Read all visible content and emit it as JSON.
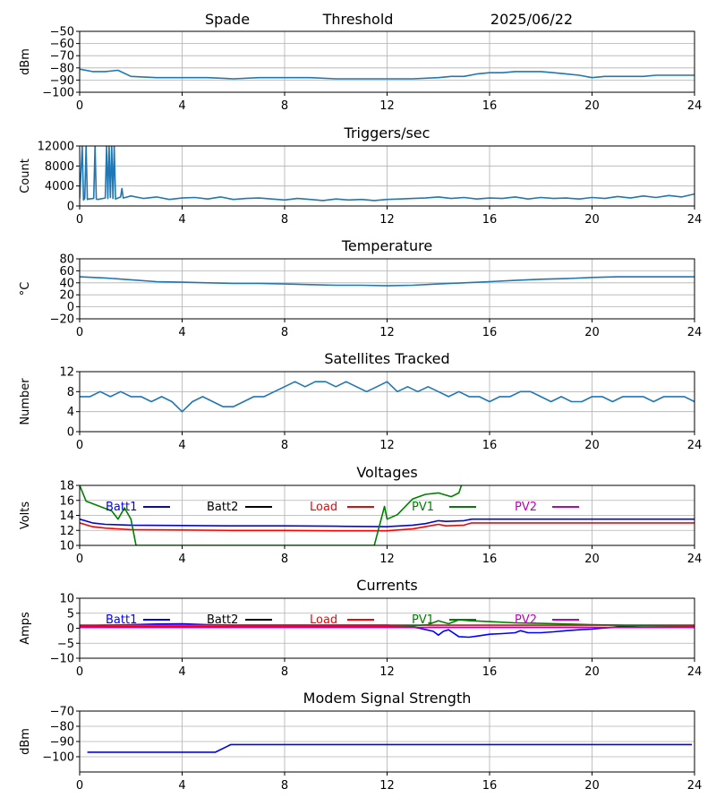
{
  "header": {
    "station": "Spade",
    "mode": "Threshold",
    "date": "2025/06/22"
  },
  "chart_data": [
    {
      "id": "signal",
      "type": "line",
      "title": "",
      "xlabel": "",
      "ylabel": "dBm",
      "xlim": [
        0,
        24
      ],
      "ylim": [
        -100,
        -50
      ],
      "xticks": [
        0,
        4,
        8,
        12,
        16,
        20,
        24
      ],
      "yticks": [
        -100,
        -90,
        -80,
        -70,
        -60,
        -50
      ],
      "ytick_labels": [
        "−100",
        "−90",
        "−80",
        "−70",
        "−60",
        "−50"
      ],
      "grid": true,
      "series": [
        {
          "name": "",
          "color": "#1f77b4",
          "x": [
            0,
            0.5,
            1.0,
            1.5,
            2,
            3,
            4,
            5,
            6,
            7,
            8,
            9,
            10,
            11,
            12,
            13,
            14,
            14.5,
            15,
            15.5,
            16,
            16.5,
            17,
            17.5,
            18,
            18.5,
            19,
            19.5,
            20,
            20.5,
            21,
            21.5,
            22,
            22.5,
            23,
            23.5,
            24
          ],
          "y": [
            -81,
            -83,
            -83,
            -82,
            -87,
            -88,
            -88,
            -88,
            -89,
            -88,
            -88,
            -88,
            -89,
            -89,
            -89,
            -89,
            -88,
            -87,
            -87,
            -85,
            -84,
            -84,
            -83,
            -83,
            -83,
            -84,
            -85,
            -86,
            -88,
            -87,
            -87,
            -87,
            -87,
            -86,
            -86,
            -86,
            -86
          ]
        }
      ]
    },
    {
      "id": "triggers",
      "type": "line",
      "title": "Triggers/sec",
      "xlabel": "",
      "ylabel": "Count",
      "xlim": [
        0,
        24
      ],
      "ylim": [
        0,
        12000
      ],
      "xticks": [
        0,
        4,
        8,
        12,
        16,
        20,
        24
      ],
      "yticks": [
        0,
        4000,
        8000,
        12000
      ],
      "ytick_labels": [
        "0",
        "4000",
        "8000",
        "12000"
      ],
      "grid": true,
      "series": [
        {
          "name": "",
          "color": "#1f77b4",
          "x": [
            0,
            0.1,
            0.15,
            0.2,
            0.25,
            0.3,
            0.35,
            0.55,
            0.6,
            0.65,
            0.7,
            1.0,
            1.05,
            1.1,
            1.15,
            1.2,
            1.25,
            1.3,
            1.35,
            1.4,
            1.6,
            1.65,
            1.7,
            2,
            2.5,
            3,
            3.5,
            4,
            4.5,
            5,
            5.5,
            6,
            6.5,
            7,
            7.5,
            8,
            8.5,
            9,
            9.5,
            10,
            10.5,
            11,
            11.5,
            12,
            12.5,
            13,
            13.5,
            14,
            14.5,
            15,
            15.5,
            16,
            16.5,
            17,
            17.5,
            18,
            18.5,
            19,
            19.5,
            20,
            20.5,
            21,
            21.5,
            22,
            22.5,
            23,
            23.5,
            24
          ],
          "y": [
            1500,
            12000,
            1200,
            1500,
            12000,
            1300,
            1400,
            1500,
            12000,
            1400,
            1300,
            1600,
            12000,
            1500,
            12000,
            1700,
            12000,
            1500,
            12000,
            1400,
            1800,
            3500,
            1600,
            2000,
            1500,
            1800,
            1300,
            1600,
            1700,
            1400,
            1800,
            1300,
            1500,
            1600,
            1400,
            1200,
            1500,
            1300,
            1100,
            1400,
            1200,
            1300,
            1100,
            1300,
            1400,
            1500,
            1600,
            1800,
            1500,
            1700,
            1400,
            1600,
            1500,
            1800,
            1400,
            1700,
            1500,
            1600,
            1400,
            1700,
            1500,
            1900,
            1600,
            2000,
            1700,
            2100,
            1800,
            2400
          ]
        }
      ]
    },
    {
      "id": "temperature",
      "type": "line",
      "title": "Temperature",
      "xlabel": "",
      "ylabel": "°C",
      "xlim": [
        0,
        24
      ],
      "ylim": [
        -20,
        80
      ],
      "xticks": [
        0,
        4,
        8,
        12,
        16,
        20,
        24
      ],
      "yticks": [
        -20,
        0,
        20,
        40,
        60,
        80
      ],
      "ytick_labels": [
        "−20",
        "0",
        "20",
        "40",
        "60",
        "80"
      ],
      "grid": true,
      "series": [
        {
          "name": "",
          "color": "#1f77b4",
          "x": [
            0,
            1,
            2,
            3,
            4,
            5,
            6,
            7,
            8,
            9,
            10,
            11,
            12,
            13,
            14,
            15,
            16,
            17,
            18,
            19,
            20,
            21,
            22,
            23,
            24
          ],
          "y": [
            50,
            48,
            45,
            42,
            41,
            40,
            39,
            39,
            38,
            37,
            36,
            36,
            35,
            36,
            38,
            40,
            42,
            44,
            46,
            47,
            49,
            50,
            50,
            50,
            50
          ]
        }
      ]
    },
    {
      "id": "satellites",
      "type": "line",
      "title": "Satellites Tracked",
      "xlabel": "",
      "ylabel": "Number",
      "xlim": [
        0,
        24
      ],
      "ylim": [
        0,
        12
      ],
      "xticks": [
        0,
        4,
        8,
        12,
        16,
        20,
        24
      ],
      "yticks": [
        0,
        4,
        8,
        12
      ],
      "ytick_labels": [
        "0",
        "4",
        "8",
        "12"
      ],
      "grid": true,
      "series": [
        {
          "name": "",
          "color": "#1f77b4",
          "x": [
            0,
            0.4,
            0.8,
            1.2,
            1.6,
            2.0,
            2.4,
            2.8,
            3.2,
            3.6,
            4.0,
            4.4,
            4.8,
            5.2,
            5.6,
            6.0,
            6.4,
            6.8,
            7.2,
            7.6,
            8.0,
            8.4,
            8.8,
            9.2,
            9.6,
            10.0,
            10.4,
            10.8,
            11.2,
            11.6,
            12.0,
            12.4,
            12.8,
            13.2,
            13.6,
            14.0,
            14.4,
            14.8,
            15.2,
            15.6,
            16.0,
            16.4,
            16.8,
            17.2,
            17.6,
            18.0,
            18.4,
            18.8,
            19.2,
            19.6,
            20.0,
            20.4,
            20.8,
            21.2,
            21.6,
            22.0,
            22.4,
            22.8,
            23.2,
            23.6,
            24.0
          ],
          "y": [
            7,
            7,
            8,
            7,
            8,
            7,
            7,
            6,
            7,
            6,
            4,
            6,
            7,
            6,
            5,
            5,
            6,
            7,
            7,
            8,
            9,
            10,
            9,
            10,
            10,
            9,
            10,
            9,
            8,
            9,
            10,
            8,
            9,
            8,
            9,
            8,
            7,
            8,
            7,
            7,
            6,
            7,
            7,
            8,
            8,
            7,
            6,
            7,
            6,
            6,
            7,
            7,
            6,
            7,
            7,
            7,
            6,
            7,
            7,
            7,
            6
          ]
        }
      ]
    },
    {
      "id": "voltages",
      "type": "line",
      "title": "Voltages",
      "xlabel": "",
      "ylabel": "Volts",
      "xlim": [
        0,
        24
      ],
      "ylim": [
        10,
        18
      ],
      "xticks": [
        0,
        4,
        8,
        12,
        16,
        20,
        24
      ],
      "yticks": [
        10,
        12,
        14,
        16,
        18
      ],
      "ytick_labels": [
        "10",
        "12",
        "14",
        "16",
        "18"
      ],
      "grid": true,
      "legend": "inline-top",
      "series": [
        {
          "name": "Batt1",
          "color": "#0000ff",
          "x": [
            0,
            0.5,
            1,
            2,
            4,
            6,
            8,
            10,
            12,
            13,
            13.5,
            14,
            14.3,
            15,
            15.3,
            16,
            18,
            20,
            22,
            24
          ],
          "y": [
            13.5,
            13.0,
            12.8,
            12.7,
            12.65,
            12.6,
            12.6,
            12.55,
            12.5,
            12.7,
            12.9,
            13.3,
            13.2,
            13.3,
            13.5,
            13.5,
            13.5,
            13.5,
            13.5,
            13.5
          ]
        },
        {
          "name": "Batt2",
          "color": "#000000",
          "x": [],
          "y": []
        },
        {
          "name": "Load",
          "color": "#ff0000",
          "x": [
            0,
            0.5,
            1,
            2,
            4,
            6,
            8,
            10,
            12,
            13,
            13.5,
            14,
            14.3,
            15,
            15.3,
            16,
            18,
            20,
            22,
            24
          ],
          "y": [
            13.0,
            12.5,
            12.3,
            12.1,
            12.05,
            12.0,
            12.0,
            11.95,
            11.95,
            12.2,
            12.5,
            12.8,
            12.6,
            12.7,
            13.0,
            13.0,
            13.0,
            13.0,
            13.0,
            13.0
          ]
        },
        {
          "name": "PV1",
          "color": "#008000",
          "x": [
            0,
            0.25,
            1.25,
            1.5,
            1.75,
            2.0,
            2.2,
            11.5,
            11.9,
            12.0,
            12.4,
            13.0,
            13.5,
            14.0,
            14.5,
            14.8,
            15.0
          ],
          "y": [
            18,
            15.9,
            14.6,
            13.5,
            15,
            13.5,
            10,
            10,
            15.2,
            13.5,
            14.1,
            16.2,
            16.8,
            17.0,
            16.5,
            17.0,
            19
          ]
        },
        {
          "name": "PV2",
          "color": "#bf00bf",
          "x": [],
          "y": []
        }
      ]
    },
    {
      "id": "currents",
      "type": "line",
      "title": "Currents",
      "xlabel": "",
      "ylabel": "Amps",
      "xlim": [
        0,
        24
      ],
      "ylim": [
        -10,
        10
      ],
      "xticks": [
        0,
        4,
        8,
        12,
        16,
        20,
        24
      ],
      "yticks": [
        -10,
        -5,
        0,
        5,
        10
      ],
      "ytick_labels": [
        "−10",
        "−5",
        "0",
        "5",
        "10"
      ],
      "grid": true,
      "legend": "inline-top",
      "series": [
        {
          "name": "Batt1",
          "color": "#0000ff",
          "x": [
            0,
            1,
            2,
            3,
            4,
            5,
            6,
            8,
            10,
            12,
            13,
            13.8,
            14,
            14.2,
            14.4,
            14.8,
            15.2,
            15.6,
            16,
            16.5,
            17,
            17.2,
            17.5,
            18,
            18.5,
            19,
            19.5,
            20,
            21,
            22,
            23,
            24
          ],
          "y": [
            0.8,
            1.0,
            1.2,
            1.4,
            1.5,
            1.2,
            1.0,
            1.0,
            1.0,
            1.0,
            0.5,
            -1,
            -2.3,
            -1,
            -0.5,
            -2.8,
            -3.0,
            -2.5,
            -2.0,
            -1.8,
            -1.5,
            -0.8,
            -1.5,
            -1.5,
            -1.2,
            -0.8,
            -0.5,
            -0.3,
            0.5,
            0.8,
            0.8,
            0.8
          ]
        },
        {
          "name": "Batt2",
          "color": "#000000",
          "x": [],
          "y": []
        },
        {
          "name": "Load",
          "color": "#ff0000",
          "x": [
            0,
            4,
            8,
            12,
            16,
            20,
            24
          ],
          "y": [
            1.0,
            1.0,
            1.0,
            1.0,
            1.0,
            1.0,
            1.0
          ]
        },
        {
          "name": "PV1",
          "color": "#008000",
          "x": [
            0,
            12,
            13,
            13.6,
            14.0,
            14.4,
            14.8,
            15.2,
            16,
            17,
            18,
            19,
            20,
            21,
            22,
            24
          ],
          "y": [
            0.5,
            0.5,
            0.8,
            1.2,
            2.5,
            1.5,
            2.8,
            2.5,
            2.2,
            1.8,
            1.6,
            1.4,
            1.2,
            1.0,
            0.8,
            0.6
          ]
        },
        {
          "name": "PV2",
          "color": "#bf00bf",
          "x": [
            0,
            24
          ],
          "y": [
            0.3,
            0.3
          ]
        }
      ]
    },
    {
      "id": "modem",
      "type": "line",
      "title": "Modem Signal Strength",
      "xlabel": "",
      "ylabel": "dBm",
      "xlim": [
        0,
        24
      ],
      "ylim": [
        -110,
        -70
      ],
      "xticks": [
        0,
        4,
        8,
        12,
        16,
        20,
        24
      ],
      "yticks": [
        -100,
        -90,
        -80,
        -70
      ],
      "ytick_labels": [
        "−100",
        "−90",
        "−80",
        "−70"
      ],
      "grid": true,
      "series": [
        {
          "name": "",
          "color": "#0000ff",
          "x": [
            0.3,
            5.3,
            5.9,
            23.9
          ],
          "y": [
            -97,
            -97,
            -92,
            -92
          ]
        }
      ]
    }
  ]
}
